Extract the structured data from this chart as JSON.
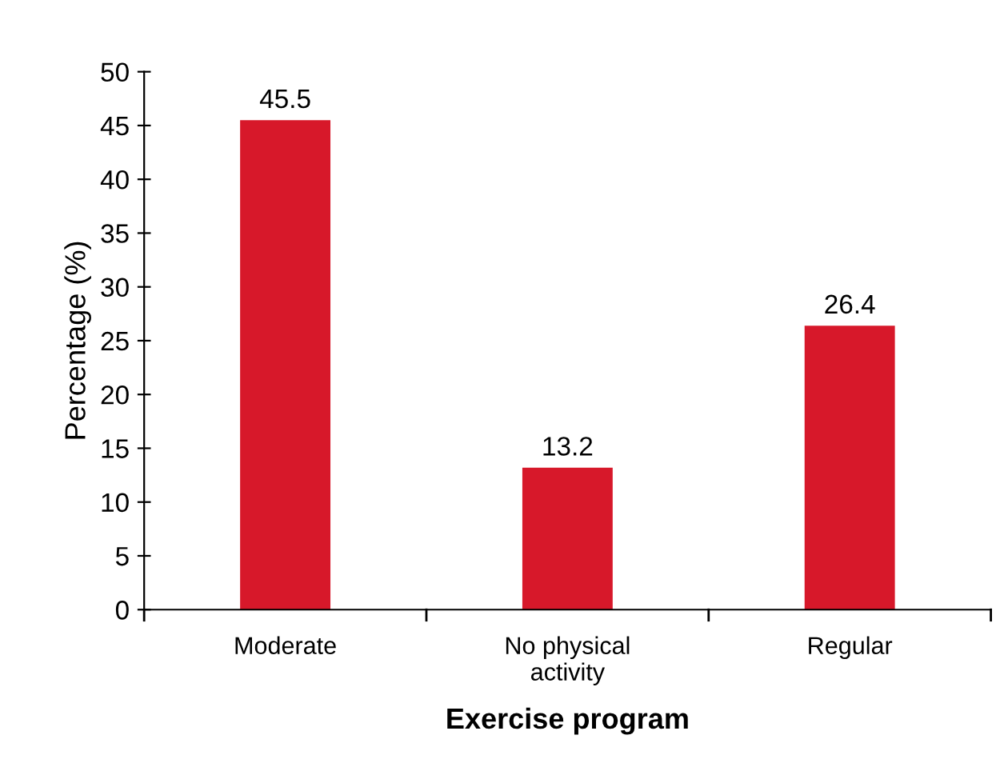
{
  "chart_data": {
    "type": "bar",
    "xlabel": "Exercise program",
    "ylabel": "Percentage (%)",
    "categories": [
      "Moderate",
      "No physical\nactivity",
      "Regular"
    ],
    "values": [
      45.5,
      13.2,
      26.4
    ],
    "color": "#d7182a",
    "ylim": [
      0,
      50
    ],
    "yticks": [
      0,
      5,
      10,
      15,
      20,
      25,
      30,
      35,
      40,
      45,
      50
    ],
    "data_labels": true,
    "grid": false,
    "legend": false
  }
}
